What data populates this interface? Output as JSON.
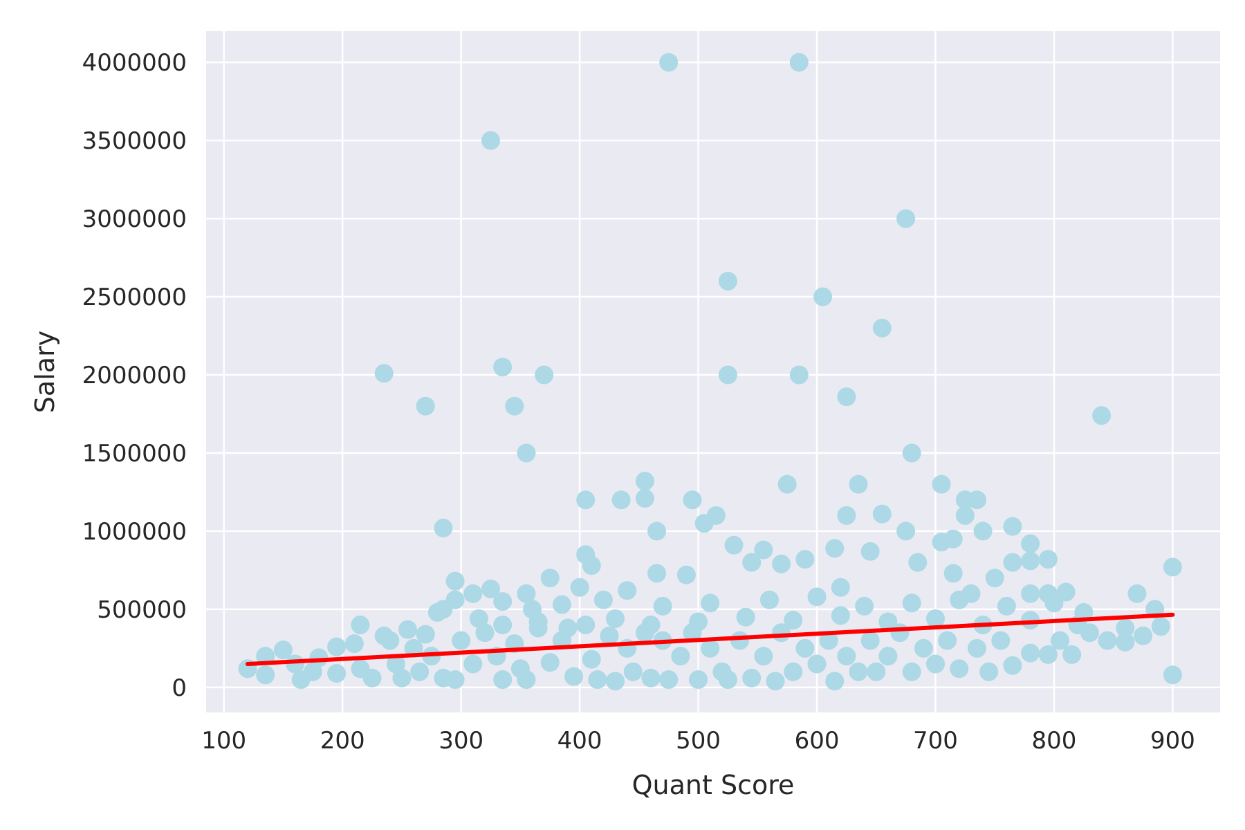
{
  "chart_data": {
    "type": "scatter",
    "title": "",
    "xlabel": "Quant Score",
    "ylabel": "Salary",
    "xlim": [
      85,
      940
    ],
    "ylim": [
      -160000,
      4200000
    ],
    "xticks": [
      100,
      200,
      300,
      400,
      500,
      600,
      700,
      800,
      900
    ],
    "yticks": [
      0,
      500000,
      1000000,
      1500000,
      2000000,
      2500000,
      3000000,
      3500000,
      4000000
    ],
    "xtick_labels": [
      "100",
      "200",
      "300",
      "400",
      "500",
      "600",
      "700",
      "800",
      "900"
    ],
    "ytick_labels": [
      "0",
      "500000",
      "1000000",
      "1500000",
      "2000000",
      "2500000",
      "3000000",
      "3500000",
      "4000000"
    ],
    "grid": true,
    "colors": {
      "background": "#eaeaf2",
      "grid": "#ffffff",
      "points": "#add8e6",
      "fit_line": "#ff0000"
    },
    "series": [
      {
        "type": "scatter",
        "points": [
          [
            475,
            4000000
          ],
          [
            585,
            4000000
          ],
          [
            325,
            3500000
          ],
          [
            675,
            3000000
          ],
          [
            525,
            2600000
          ],
          [
            605,
            2500000
          ],
          [
            655,
            2300000
          ],
          [
            235,
            2010000
          ],
          [
            335,
            2050000
          ],
          [
            370,
            2000000
          ],
          [
            525,
            2000000
          ],
          [
            585,
            2000000
          ],
          [
            625,
            1860000
          ],
          [
            270,
            1800000
          ],
          [
            345,
            1800000
          ],
          [
            840,
            1740000
          ],
          [
            355,
            1500000
          ],
          [
            680,
            1500000
          ],
          [
            455,
            1320000
          ],
          [
            575,
            1300000
          ],
          [
            635,
            1300000
          ],
          [
            705,
            1300000
          ],
          [
            405,
            1200000
          ],
          [
            435,
            1200000
          ],
          [
            455,
            1210000
          ],
          [
            495,
            1200000
          ],
          [
            725,
            1200000
          ],
          [
            735,
            1200000
          ],
          [
            515,
            1100000
          ],
          [
            625,
            1100000
          ],
          [
            655,
            1110000
          ],
          [
            725,
            1100000
          ],
          [
            505,
            1050000
          ],
          [
            285,
            1020000
          ],
          [
            465,
            1000000
          ],
          [
            675,
            1000000
          ],
          [
            740,
            1000000
          ],
          [
            765,
            1030000
          ],
          [
            530,
            910000
          ],
          [
            555,
            880000
          ],
          [
            615,
            890000
          ],
          [
            705,
            930000
          ],
          [
            715,
            950000
          ],
          [
            780,
            920000
          ],
          [
            405,
            850000
          ],
          [
            545,
            800000
          ],
          [
            590,
            820000
          ],
          [
            645,
            870000
          ],
          [
            685,
            800000
          ],
          [
            765,
            800000
          ],
          [
            780,
            810000
          ],
          [
            795,
            820000
          ],
          [
            900,
            770000
          ],
          [
            410,
            780000
          ],
          [
            570,
            790000
          ],
          [
            295,
            680000
          ],
          [
            375,
            700000
          ],
          [
            465,
            730000
          ],
          [
            490,
            720000
          ],
          [
            715,
            730000
          ],
          [
            750,
            700000
          ],
          [
            310,
            600000
          ],
          [
            325,
            630000
          ],
          [
            355,
            600000
          ],
          [
            400,
            640000
          ],
          [
            440,
            620000
          ],
          [
            620,
            640000
          ],
          [
            730,
            600000
          ],
          [
            780,
            600000
          ],
          [
            795,
            600000
          ],
          [
            810,
            610000
          ],
          [
            870,
            600000
          ],
          [
            280,
            480000
          ],
          [
            285,
            500000
          ],
          [
            295,
            560000
          ],
          [
            335,
            550000
          ],
          [
            360,
            500000
          ],
          [
            385,
            530000
          ],
          [
            420,
            560000
          ],
          [
            470,
            520000
          ],
          [
            510,
            540000
          ],
          [
            560,
            560000
          ],
          [
            600,
            580000
          ],
          [
            640,
            520000
          ],
          [
            680,
            540000
          ],
          [
            720,
            560000
          ],
          [
            760,
            520000
          ],
          [
            800,
            540000
          ],
          [
            825,
            480000
          ],
          [
            885,
            500000
          ],
          [
            215,
            400000
          ],
          [
            235,
            330000
          ],
          [
            255,
            370000
          ],
          [
            270,
            340000
          ],
          [
            315,
            440000
          ],
          [
            335,
            400000
          ],
          [
            365,
            420000
          ],
          [
            390,
            380000
          ],
          [
            430,
            440000
          ],
          [
            460,
            400000
          ],
          [
            500,
            420000
          ],
          [
            540,
            450000
          ],
          [
            580,
            430000
          ],
          [
            620,
            460000
          ],
          [
            660,
            420000
          ],
          [
            700,
            440000
          ],
          [
            740,
            400000
          ],
          [
            780,
            430000
          ],
          [
            820,
            400000
          ],
          [
            860,
            380000
          ],
          [
            890,
            390000
          ],
          [
            120,
            120000
          ],
          [
            135,
            200000
          ],
          [
            135,
            80000
          ],
          [
            150,
            240000
          ],
          [
            160,
            150000
          ],
          [
            165,
            50000
          ],
          [
            175,
            100000
          ],
          [
            180,
            190000
          ],
          [
            195,
            260000
          ],
          [
            195,
            90000
          ],
          [
            210,
            280000
          ],
          [
            215,
            120000
          ],
          [
            225,
            60000
          ],
          [
            240,
            300000
          ],
          [
            245,
            150000
          ],
          [
            250,
            60000
          ],
          [
            260,
            250000
          ],
          [
            265,
            100000
          ],
          [
            275,
            200000
          ],
          [
            285,
            60000
          ],
          [
            295,
            50000
          ],
          [
            300,
            300000
          ],
          [
            310,
            150000
          ],
          [
            320,
            350000
          ],
          [
            330,
            200000
          ],
          [
            335,
            50000
          ],
          [
            345,
            280000
          ],
          [
            350,
            120000
          ],
          [
            355,
            50000
          ],
          [
            365,
            380000
          ],
          [
            375,
            160000
          ],
          [
            385,
            300000
          ],
          [
            395,
            70000
          ],
          [
            405,
            400000
          ],
          [
            410,
            180000
          ],
          [
            415,
            50000
          ],
          [
            425,
            330000
          ],
          [
            430,
            40000
          ],
          [
            440,
            250000
          ],
          [
            445,
            100000
          ],
          [
            455,
            350000
          ],
          [
            460,
            60000
          ],
          [
            470,
            300000
          ],
          [
            475,
            50000
          ],
          [
            485,
            200000
          ],
          [
            495,
            350000
          ],
          [
            500,
            50000
          ],
          [
            510,
            250000
          ],
          [
            520,
            100000
          ],
          [
            525,
            50000
          ],
          [
            535,
            300000
          ],
          [
            545,
            60000
          ],
          [
            555,
            200000
          ],
          [
            565,
            40000
          ],
          [
            570,
            350000
          ],
          [
            580,
            100000
          ],
          [
            590,
            250000
          ],
          [
            600,
            150000
          ],
          [
            610,
            300000
          ],
          [
            615,
            40000
          ],
          [
            625,
            200000
          ],
          [
            635,
            100000
          ],
          [
            645,
            300000
          ],
          [
            650,
            100000
          ],
          [
            660,
            200000
          ],
          [
            670,
            350000
          ],
          [
            680,
            100000
          ],
          [
            690,
            250000
          ],
          [
            700,
            150000
          ],
          [
            710,
            300000
          ],
          [
            720,
            120000
          ],
          [
            735,
            250000
          ],
          [
            745,
            100000
          ],
          [
            755,
            300000
          ],
          [
            765,
            140000
          ],
          [
            780,
            220000
          ],
          [
            795,
            210000
          ],
          [
            805,
            300000
          ],
          [
            815,
            210000
          ],
          [
            830,
            350000
          ],
          [
            845,
            300000
          ],
          [
            860,
            290000
          ],
          [
            875,
            330000
          ],
          [
            900,
            80000
          ]
        ]
      },
      {
        "type": "line",
        "points": [
          [
            120,
            150000
          ],
          [
            900,
            465000
          ]
        ]
      }
    ]
  }
}
